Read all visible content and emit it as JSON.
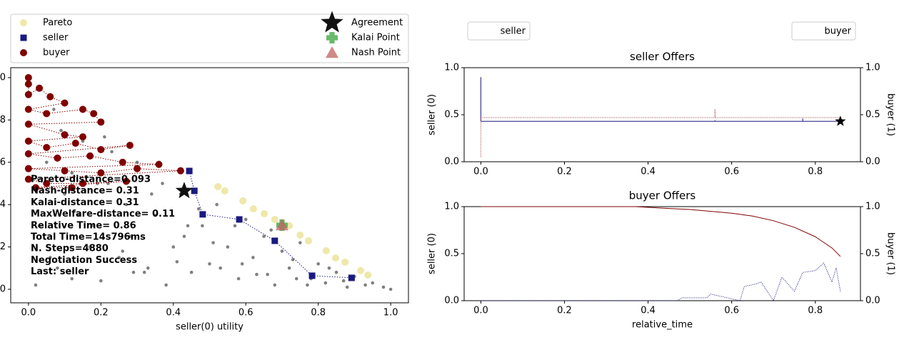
{
  "chart_data": [
    {
      "type": "scatter",
      "xlabel": "seller(0) utility",
      "xlim": [
        -0.049,
        1.049
      ],
      "ylim": [
        -0.064,
        1.047
      ],
      "xticks": [
        {
          "value": 0,
          "label": "0.0"
        },
        0.2,
        0.4,
        0.6,
        0.8,
        {
          "value": 1,
          "label": "1.0"
        }
      ],
      "yticks": [
        {
          "value": 0,
          "label": "0.0"
        },
        0.2,
        0.4,
        0.6,
        0.8,
        {
          "value": 1,
          "label": "1.0"
        }
      ],
      "annotations": [
        "Pareto-distance=0.093",
        "Nash-distance= 0.31",
        "Kalai-distance= 0.31",
        "MaxWelfare-distance= 0.11",
        "Relative Time= 0.86",
        "Total Time=14s796ms",
        "N. Steps=4880",
        "Negotiation Success",
        "Last: seller"
      ],
      "series": [
        {
          "color": "#808080",
          "marker": "dot",
          "x": [
            0.02,
            0.05,
            0.08,
            0.1,
            0.12,
            0.15,
            0.18,
            0.2,
            0.22,
            0.25,
            0.28,
            0.3,
            0.33,
            0.35,
            0.38,
            0.4,
            0.42,
            0.45,
            0.48,
            0.5,
            0.52,
            0.55,
            0.58,
            0.6,
            0.62,
            0.65,
            0.68,
            0.7,
            0.72,
            0.75,
            0.78,
            0.8,
            0.82,
            0.85,
            0.88,
            0.9,
            0.93,
            0.95,
            0.98,
            1.0,
            0.03,
            0.07,
            0.12,
            0.17,
            0.23,
            0.27,
            0.32,
            0.37,
            0.43,
            0.47,
            0.53,
            0.57,
            0.63,
            0.67,
            0.73,
            0.77,
            0.83,
            0.87,
            0.06,
            0.14,
            0.21,
            0.29,
            0.36,
            0.44,
            0.51,
            0.59,
            0.66,
            0.74,
            0.09,
            0.19,
            0.26,
            0.34,
            0.41
          ],
          "values": [
            0.02,
            0.6,
            0.1,
            0.45,
            0.05,
            0.7,
            0.3,
            0.04,
            0.5,
            0.15,
            0.25,
            0.6,
            0.1,
            0.35,
            0.02,
            0.2,
            0.45,
            0.08,
            0.3,
            0.12,
            0.4,
            0.2,
            0.05,
            0.33,
            0.15,
            0.25,
            0.02,
            0.18,
            0.1,
            0.22,
            0.05,
            0.12,
            0.03,
            0.08,
            0.01,
            0.06,
            0.02,
            0.03,
            0.01,
            0.0,
            0.3,
            0.85,
            0.55,
            0.2,
            0.65,
            0.4,
            0.08,
            0.5,
            0.25,
            0.38,
            0.1,
            0.3,
            0.07,
            0.28,
            0.14,
            0.02,
            0.1,
            0.04,
            0.15,
            0.35,
            0.72,
            0.08,
            0.6,
            0.3,
            0.22,
            0.12,
            0.07,
            0.05,
            0.75,
            0.5,
            0.18,
            0.45,
            0.13
          ]
        },
        {
          "name": "Pareto",
          "color": "#eee8aa",
          "marker": "circle",
          "x": [
            0.523,
            0.542,
            0.592,
            0.621,
            0.651,
            0.68,
            0.72,
            0.75,
            0.773,
            0.822,
            0.848,
            0.874,
            0.917,
            0.937
          ],
          "values": [
            0.485,
            0.465,
            0.418,
            0.38,
            0.357,
            0.33,
            0.3,
            0.256,
            0.229,
            0.182,
            0.148,
            0.128,
            0.088,
            0.067
          ]
        },
        {
          "name": "seller",
          "color": "#191980",
          "marker": "square",
          "line": "dotted",
          "x": [
            0.444,
            0.458,
            0.481,
            0.582,
            0.68,
            0.783,
            0.892
          ],
          "values": [
            0.559,
            0.465,
            0.354,
            0.33,
            0.229,
            0.064,
            0.054
          ]
        },
        {
          "name": "buyer",
          "color": "#800000",
          "marker": "circle",
          "line": "dotted",
          "x": [
            0,
            0,
            0,
            0.03,
            0.06,
            0.1,
            0,
            0.05,
            0.15,
            0.18,
            0.2,
            0,
            0.1,
            0.15,
            0,
            0.05,
            0.13,
            0.2,
            0.28,
            0,
            0.08,
            0.17,
            0.26,
            0.36,
            0,
            0.1,
            0.2,
            0.3,
            0.42,
            0,
            0.05,
            0.15,
            0.27,
            0.02,
            0.12
          ],
          "values": [
            1.0,
            0.97,
            0.92,
            0.95,
            0.91,
            0.88,
            0.85,
            0.83,
            0.85,
            0.83,
            0.79,
            0.78,
            0.73,
            0.72,
            0.7,
            0.67,
            0.69,
            0.66,
            0.68,
            0.64,
            0.62,
            0.63,
            0.6,
            0.59,
            0.57,
            0.56,
            0.55,
            0.57,
            0.56,
            0.52,
            0.5,
            0.5,
            0.51,
            0.48,
            0.48
          ]
        },
        {
          "name": "Agreement",
          "color": "#111111",
          "marker": "star",
          "x": [
            0.43
          ],
          "values": [
            0.465
          ]
        },
        {
          "name": "Kalai Point",
          "color": "#4caf50",
          "marker": "plus",
          "x": [
            0.7
          ],
          "values": [
            0.303
          ]
        },
        {
          "name": "Nash Point",
          "color": "#c06060",
          "marker": "triangle",
          "x": [
            0.7
          ],
          "values": [
            0.303
          ]
        }
      ]
    },
    {
      "type": "line",
      "title": "seller Offers",
      "ylabel": "seller (0)",
      "y2label": "buyer (1)",
      "xlim": [
        -0.04,
        0.908
      ],
      "ylim": [
        0,
        1
      ],
      "y2lim": [
        0,
        1
      ],
      "xticks": [
        {
          "value": 0,
          "label": "0.0"
        },
        0.2,
        0.4,
        0.6,
        0.8
      ],
      "yticks": [
        {
          "value": 0,
          "label": "0.0"
        },
        0.5,
        {
          "value": 1,
          "label": "1.0"
        }
      ],
      "y2ticks": [
        {
          "value": 0,
          "label": "0.0"
        },
        0.5,
        {
          "value": 1,
          "label": "1.0"
        }
      ],
      "series": [
        {
          "name": "seller",
          "color": "#191980",
          "style": "solid",
          "x": [
            0,
            0,
            0.56,
            0.56,
            0.56,
            0.77,
            0.77,
            0.77,
            0.86
          ],
          "values": [
            0.9,
            0.43,
            0.43,
            0.44,
            0.43,
            0.43,
            0.46,
            0.43,
            0.43
          ]
        },
        {
          "name": "buyer",
          "color": "#a03030",
          "style": "dotted",
          "axis": "y2",
          "x": [
            0,
            0,
            0.56,
            0.56,
            0.56,
            0.86
          ],
          "values": [
            0.05,
            0.47,
            0.47,
            0.56,
            0.47,
            0.47
          ]
        },
        {
          "color": "#000000",
          "marker": "star",
          "x": [
            0.86
          ],
          "values": [
            0.43
          ]
        }
      ]
    },
    {
      "type": "line",
      "title": "buyer Offers",
      "ylabel": "seller (0)",
      "y2label": "buyer (1)",
      "xlabel": "relative_time",
      "xlim": [
        -0.04,
        0.908
      ],
      "ylim": [
        0,
        1
      ],
      "y2lim": [
        0,
        1
      ],
      "xticks": [
        {
          "value": 0,
          "label": "0.0"
        },
        0.2,
        0.4,
        0.6,
        0.8
      ],
      "yticks": [
        {
          "value": 0,
          "label": "0.0"
        },
        0.5,
        {
          "value": 1,
          "label": "1.0"
        }
      ],
      "y2ticks": [
        {
          "value": 0,
          "label": "0.0"
        },
        0.5,
        {
          "value": 1,
          "label": "1.0"
        }
      ],
      "series": [
        {
          "color": "#191980",
          "style": "dotted",
          "x": [
            0,
            0.47,
            0.48,
            0.54,
            0.55,
            0.62,
            0.63,
            0.66,
            0.67,
            0.7,
            0.72,
            0.75,
            0.77,
            0.8,
            0.82,
            0.84,
            0.85,
            0.86
          ],
          "values": [
            0,
            0,
            0.03,
            0.03,
            0.07,
            0,
            0.15,
            0.18,
            0.2,
            0,
            0.25,
            0.1,
            0.3,
            0.32,
            0.4,
            0.2,
            0.35,
            0.1
          ]
        },
        {
          "color": "#800000",
          "style": "solid",
          "axis": "y2",
          "x": [
            0,
            0.2,
            0.37,
            0.45,
            0.5,
            0.55,
            0.6,
            0.65,
            0.7,
            0.75,
            0.8,
            0.84,
            0.86
          ],
          "values": [
            1,
            1,
            1,
            0.98,
            0.97,
            0.95,
            0.93,
            0.9,
            0.85,
            0.78,
            0.68,
            0.56,
            0.47
          ]
        }
      ]
    }
  ]
}
